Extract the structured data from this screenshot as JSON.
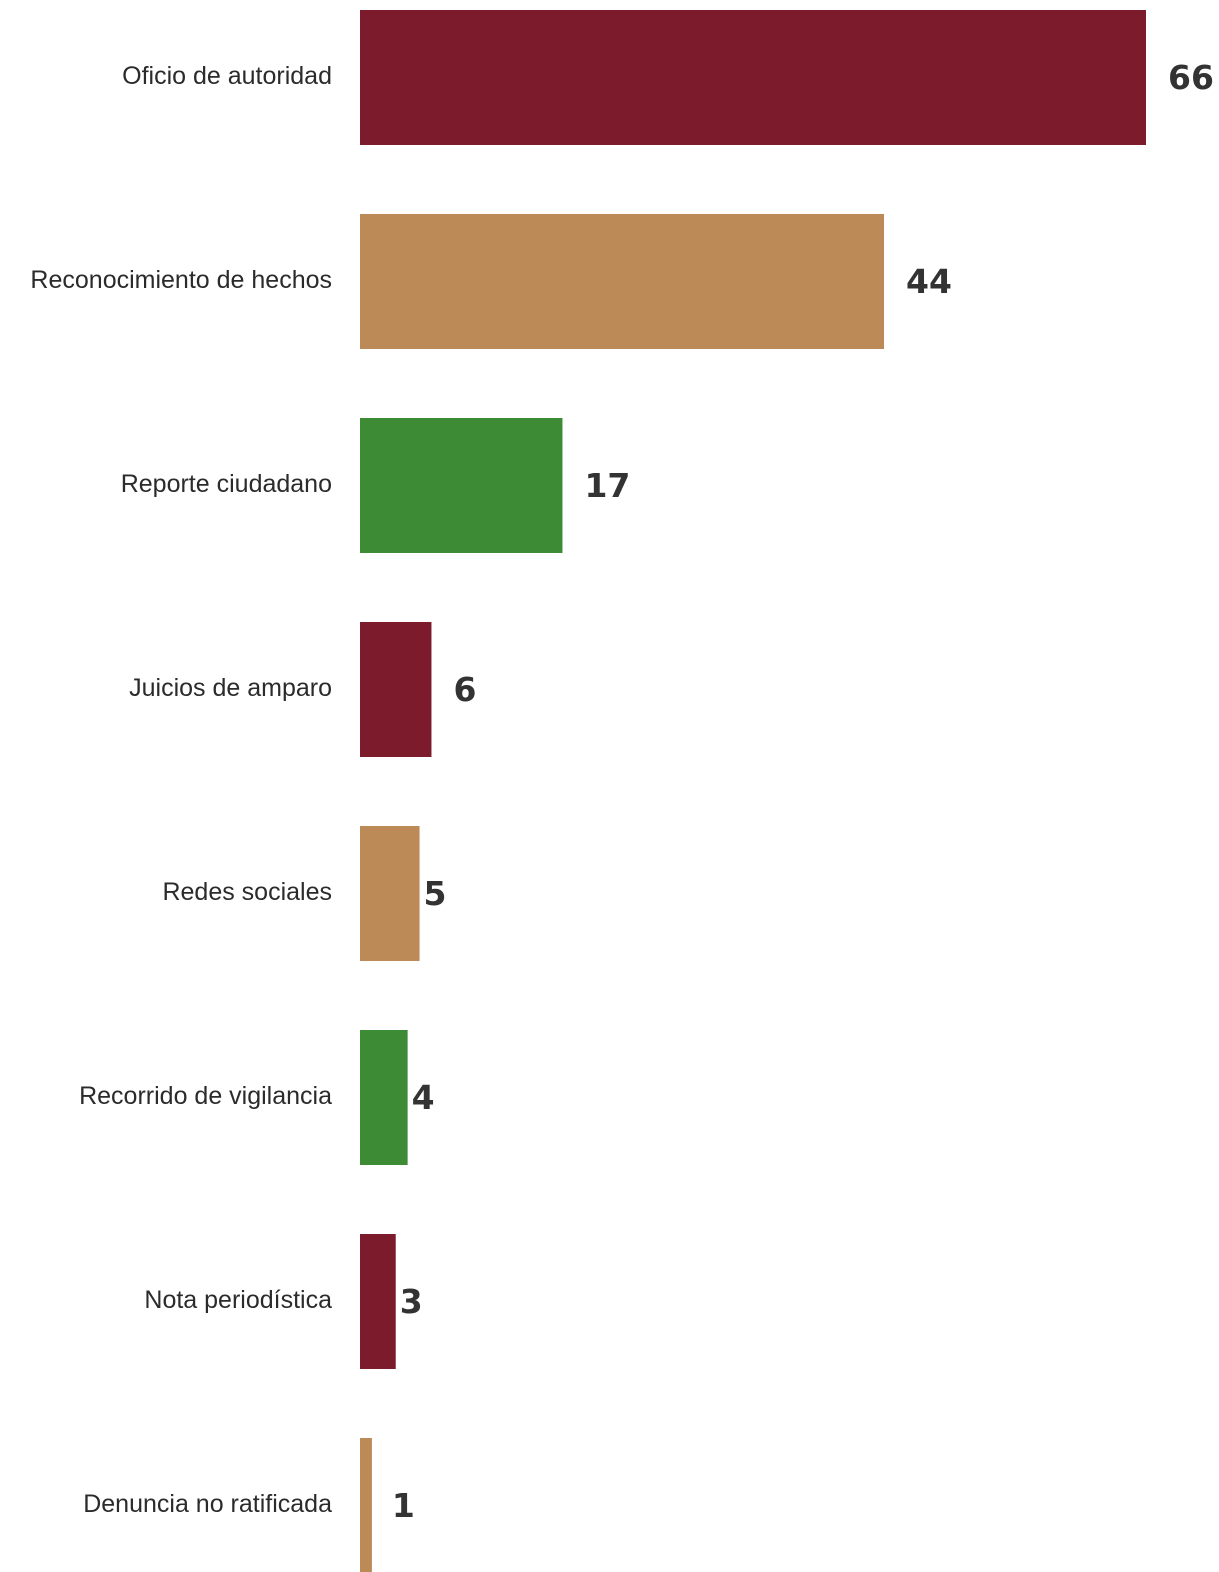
{
  "chart_data": {
    "type": "bar",
    "orientation": "horizontal",
    "categories": [
      "Oficio de autoridad",
      "Reconocimiento de hechos",
      "Reporte ciudadano",
      "Juicios de amparo",
      "Redes sociales",
      "Recorrido de vigilancia",
      "Nota periodística",
      "Denuncia no ratificada"
    ],
    "values": [
      66,
      44,
      17,
      6,
      5,
      4,
      3,
      1
    ],
    "colors": [
      "#7b1b2b",
      "#bb8a57",
      "#3d8b34",
      "#7b1b2b",
      "#bb8a57",
      "#3d8b34",
      "#7b1b2b",
      "#bb8a57"
    ],
    "title": "",
    "xlabel": "",
    "ylabel": "",
    "xlim": [
      0,
      66
    ],
    "grid": false,
    "legend": "none",
    "data_labels": true
  }
}
